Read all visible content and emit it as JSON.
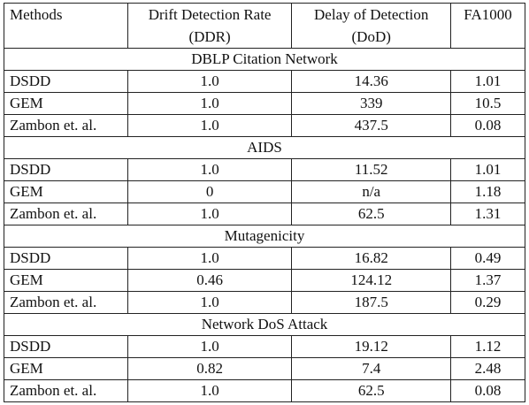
{
  "headers": [
    {
      "line1": "Methods",
      "line2": ""
    },
    {
      "line1": "Drift Detection Rate",
      "line2": "(DDR)"
    },
    {
      "line1": "Delay of Detection",
      "line2": "(DoD)"
    },
    {
      "line1": "FA1000",
      "line2": ""
    }
  ],
  "sections": [
    {
      "title": "DBLP Citation Network",
      "rows": [
        {
          "method": "DSDD",
          "ddr": "1.0",
          "ddr_bold": true,
          "dod": "14.36",
          "dod_bold": true,
          "fa": "1.01",
          "fa_bold": false
        },
        {
          "method": "GEM",
          "ddr": "1.0",
          "ddr_bold": true,
          "dod": "339",
          "dod_bold": false,
          "fa": "10.5",
          "fa_bold": false
        },
        {
          "method": "Zambon et. al.",
          "ddr": "1.0",
          "ddr_bold": true,
          "dod": "437.5",
          "dod_bold": false,
          "fa": "0.08",
          "fa_bold": true
        }
      ]
    },
    {
      "title": "AIDS",
      "rows": [
        {
          "method": "DSDD",
          "ddr": "1.0",
          "ddr_bold": true,
          "dod": "11.52",
          "dod_bold": true,
          "fa": "1.01",
          "fa_bold": true
        },
        {
          "method": "GEM",
          "ddr": "0",
          "ddr_bold": false,
          "dod": "n/a",
          "dod_bold": false,
          "fa": "1.18",
          "fa_bold": false
        },
        {
          "method": "Zambon et. al.",
          "ddr": "1.0",
          "ddr_bold": true,
          "dod": "62.5",
          "dod_bold": false,
          "fa": "1.31",
          "fa_bold": false
        }
      ]
    },
    {
      "title": "Mutagenicity",
      "rows": [
        {
          "method": "DSDD",
          "ddr": "1.0",
          "ddr_bold": true,
          "dod": "16.82",
          "dod_bold": true,
          "fa": "0.49",
          "fa_bold": false
        },
        {
          "method": "GEM",
          "ddr": "0.46",
          "ddr_bold": false,
          "dod": "124.12",
          "dod_bold": false,
          "fa": "1.37",
          "fa_bold": false
        },
        {
          "method": "Zambon et. al.",
          "ddr": "1.0",
          "ddr_bold": true,
          "dod": "187.5",
          "dod_bold": false,
          "fa": "0.29",
          "fa_bold": true
        }
      ]
    },
    {
      "title": "Network DoS Attack",
      "rows": [
        {
          "method": "DSDD",
          "ddr": "1.0",
          "ddr_bold": true,
          "dod": "19.12",
          "dod_bold": false,
          "fa": "1.12",
          "fa_bold": false
        },
        {
          "method": "GEM",
          "ddr": "0.82",
          "ddr_bold": false,
          "dod": "7.4",
          "dod_bold": true,
          "fa": "2.48",
          "fa_bold": false
        },
        {
          "method": "Zambon et. al.",
          "ddr": "1.0",
          "ddr_bold": true,
          "dod": "62.5",
          "dod_bold": false,
          "fa": "0.08",
          "fa_bold": true
        }
      ]
    }
  ]
}
